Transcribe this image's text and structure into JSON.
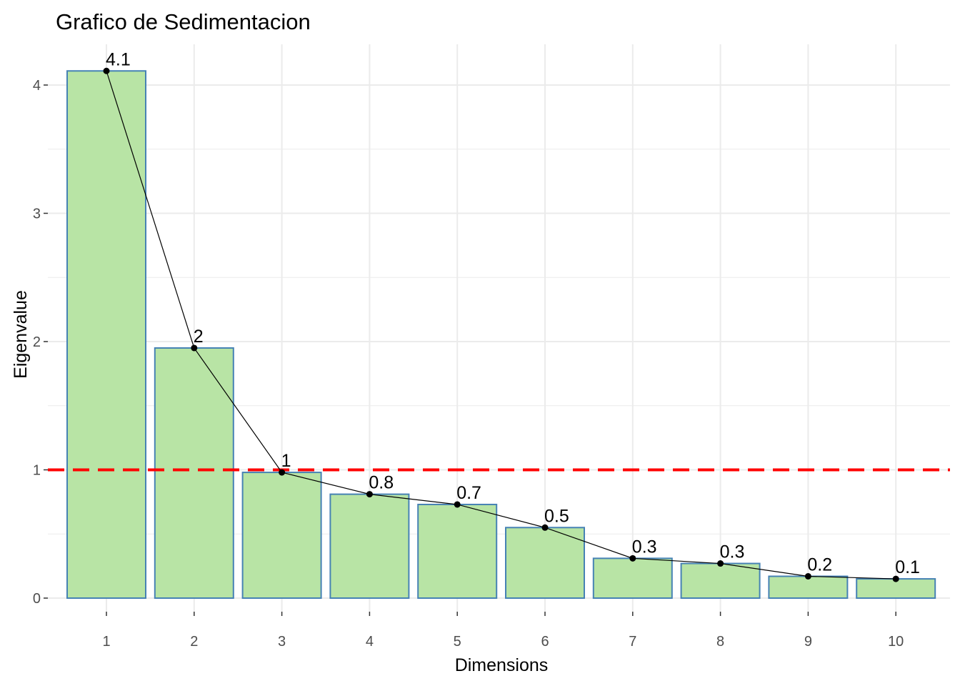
{
  "chart_data": {
    "type": "bar",
    "title": "Grafico de Sedimentacion",
    "xlabel": "Dimensions",
    "ylabel": "Eigenvalue",
    "categories": [
      "1",
      "2",
      "3",
      "4",
      "5",
      "6",
      "7",
      "8",
      "9",
      "10"
    ],
    "values": [
      4.11,
      1.95,
      0.98,
      0.81,
      0.73,
      0.55,
      0.31,
      0.27,
      0.17,
      0.15
    ],
    "data_labels": [
      "4.1",
      "2",
      "1",
      "0.8",
      "0.7",
      "0.5",
      "0.3",
      "0.3",
      "0.2",
      "0.1"
    ],
    "ylim": [
      0,
      4.3
    ],
    "yticks": [
      "0",
      "1",
      "2",
      "3",
      "4"
    ],
    "reference_line": {
      "y": 1,
      "style": "dashed",
      "color": "#ff0000"
    },
    "line_overlay": true,
    "grid": true,
    "colors": {
      "bar_fill": "#b8e4a5",
      "bar_stroke": "#4682b4",
      "line": "#000000",
      "grid": "#ebebeb"
    }
  }
}
